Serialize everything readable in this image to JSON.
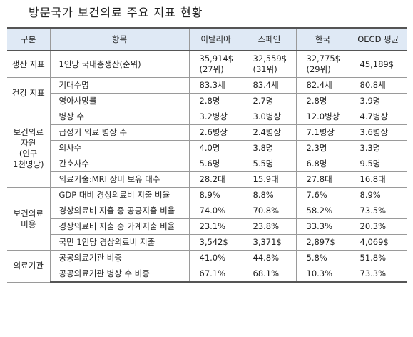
{
  "title": "방문국가 보건의료 주요 지표 현황",
  "table": {
    "header": [
      "구분",
      "항목",
      "이탈리아",
      "스페인",
      "한국",
      "OECD 평균"
    ],
    "groups": [
      {
        "label": [
          "생산 지표"
        ],
        "rows": [
          [
            [
              "1인당 국내총생산(순위)"
            ],
            [
              "35,914$",
              "(27위)"
            ],
            [
              "32,559$",
              "(31위)"
            ],
            [
              "32,775$",
              "(29위)"
            ],
            [
              "45,189$"
            ]
          ]
        ]
      },
      {
        "label": [
          "건강 지표"
        ],
        "rows": [
          [
            [
              "기대수명"
            ],
            [
              "83.3세"
            ],
            [
              "83.4세"
            ],
            [
              "82.4세"
            ],
            [
              "80.8세"
            ]
          ],
          [
            [
              "영아사망률"
            ],
            [
              "2.8명"
            ],
            [
              "2.7명"
            ],
            [
              "2.8명"
            ],
            [
              "3.9명"
            ]
          ]
        ]
      },
      {
        "label": [
          "보건의료",
          "자원",
          "(인구",
          "1천명당)"
        ],
        "rows": [
          [
            [
              "병상 수"
            ],
            [
              "3.2병상"
            ],
            [
              "3.0병상"
            ],
            [
              "12.0병상"
            ],
            [
              "4.7병상"
            ]
          ],
          [
            [
              "급성기 의료 병상 수"
            ],
            [
              "2.6병상"
            ],
            [
              "2.4병상"
            ],
            [
              "7.1병상"
            ],
            [
              "3.6병상"
            ]
          ],
          [
            [
              "의사수"
            ],
            [
              "4.0명"
            ],
            [
              "3.8명"
            ],
            [
              "2.3명"
            ],
            [
              "3.3명"
            ]
          ],
          [
            [
              "간호사수"
            ],
            [
              "5.6명"
            ],
            [
              "5.5명"
            ],
            [
              "6.8명"
            ],
            [
              "9.5명"
            ]
          ],
          [
            [
              "의료기술:MRI 장비 보유 대수"
            ],
            [
              "28.2대"
            ],
            [
              "15.9대"
            ],
            [
              "27.8대"
            ],
            [
              "16.8대"
            ]
          ]
        ]
      },
      {
        "label": [
          "보건의료",
          "비용"
        ],
        "rows": [
          [
            [
              "GDP 대비 경상의료비 지출 비율"
            ],
            [
              "8.9%"
            ],
            [
              "8.8%"
            ],
            [
              "7.6%"
            ],
            [
              "8.9%"
            ]
          ],
          [
            [
              "경상의료비 지출 중 공공지출 비율"
            ],
            [
              "74.0%"
            ],
            [
              "70.8%"
            ],
            [
              "58.2%"
            ],
            [
              "73.5%"
            ]
          ],
          [
            [
              "경상의료비 지출 중 가계지출 비율"
            ],
            [
              "23.1%"
            ],
            [
              "23.8%"
            ],
            [
              "33.3%"
            ],
            [
              "20.3%"
            ]
          ],
          [
            [
              "국민 1인당 경상의료비 지출"
            ],
            [
              "3,542$"
            ],
            [
              "3,371$"
            ],
            [
              "2,897$"
            ],
            [
              "4,069$"
            ]
          ]
        ]
      },
      {
        "label": [
          "의료기관"
        ],
        "rows": [
          [
            [
              "공공의료기관 비중"
            ],
            [
              "41.0%"
            ],
            [
              "44.8%"
            ],
            [
              "5.8%"
            ],
            [
              "51.8%"
            ]
          ],
          [
            [
              "공공의료기관 병상 수 비중"
            ],
            [
              "67.1%"
            ],
            [
              "68.1%"
            ],
            [
              "10.3%"
            ],
            [
              "73.3%"
            ]
          ]
        ]
      }
    ]
  }
}
